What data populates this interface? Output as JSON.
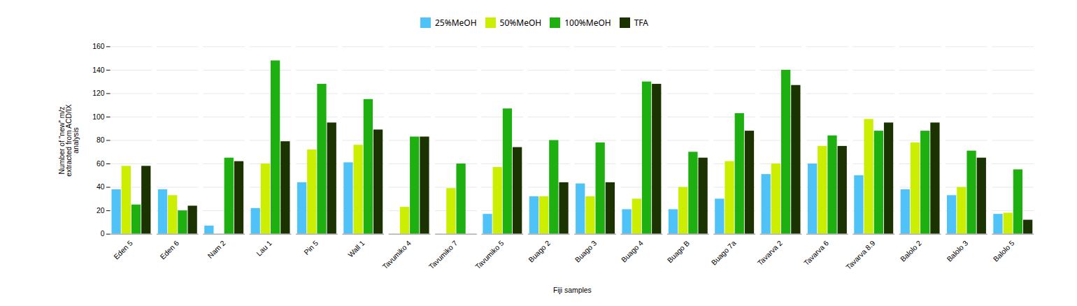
{
  "chart_data": {
    "type": "bar",
    "categories": [
      "Eden 5",
      "Eden 6",
      "Nam 2",
      "Lau 1",
      "Pin 5",
      "Wall 1",
      "Tavumiko 4",
      "Tavumiko 7",
      "Tavumiko 5",
      "Buago 2",
      "Buago 3",
      "Buago 4",
      "Buago B",
      "Buago 7a",
      "Tavarva 2",
      "Tavarva 6",
      "Tavarva 8.9",
      "Balolo 2",
      "Balolo 3",
      "Balolo 5"
    ],
    "series": [
      {
        "name": "25%MeOH",
        "color": "#4FC3F7",
        "values": [
          38,
          38,
          7,
          22,
          44,
          61,
          0,
          0,
          17,
          32,
          43,
          21,
          21,
          30,
          51,
          60,
          50,
          38,
          33,
          17
        ]
      },
      {
        "name": "50%MeOH",
        "color": "#CCEE00",
        "values": [
          58,
          33,
          0,
          60,
          72,
          76,
          23,
          39,
          57,
          32,
          32,
          30,
          40,
          62,
          60,
          75,
          98,
          78,
          40,
          18
        ]
      },
      {
        "name": "100%MeOH",
        "color": "#1DB010",
        "values": [
          25,
          20,
          65,
          148,
          128,
          115,
          83,
          60,
          107,
          80,
          78,
          130,
          70,
          103,
          140,
          84,
          88,
          88,
          71,
          55
        ]
      },
      {
        "name": "TFA",
        "color": "#1A3300",
        "values": [
          58,
          24,
          62,
          79,
          95,
          89,
          83,
          0,
          74,
          44,
          44,
          128,
          65,
          88,
          127,
          75,
          95,
          95,
          65,
          12
        ]
      }
    ],
    "xlabel": "Fiji samples",
    "ylabel": "Number of “new” m/z\nextracted from ACD/IX\nanalysis",
    "ylim": [
      0,
      160
    ],
    "yticks": [
      0,
      20,
      40,
      60,
      80,
      100,
      120,
      140,
      160
    ],
    "grid": true,
    "legend": "top"
  }
}
